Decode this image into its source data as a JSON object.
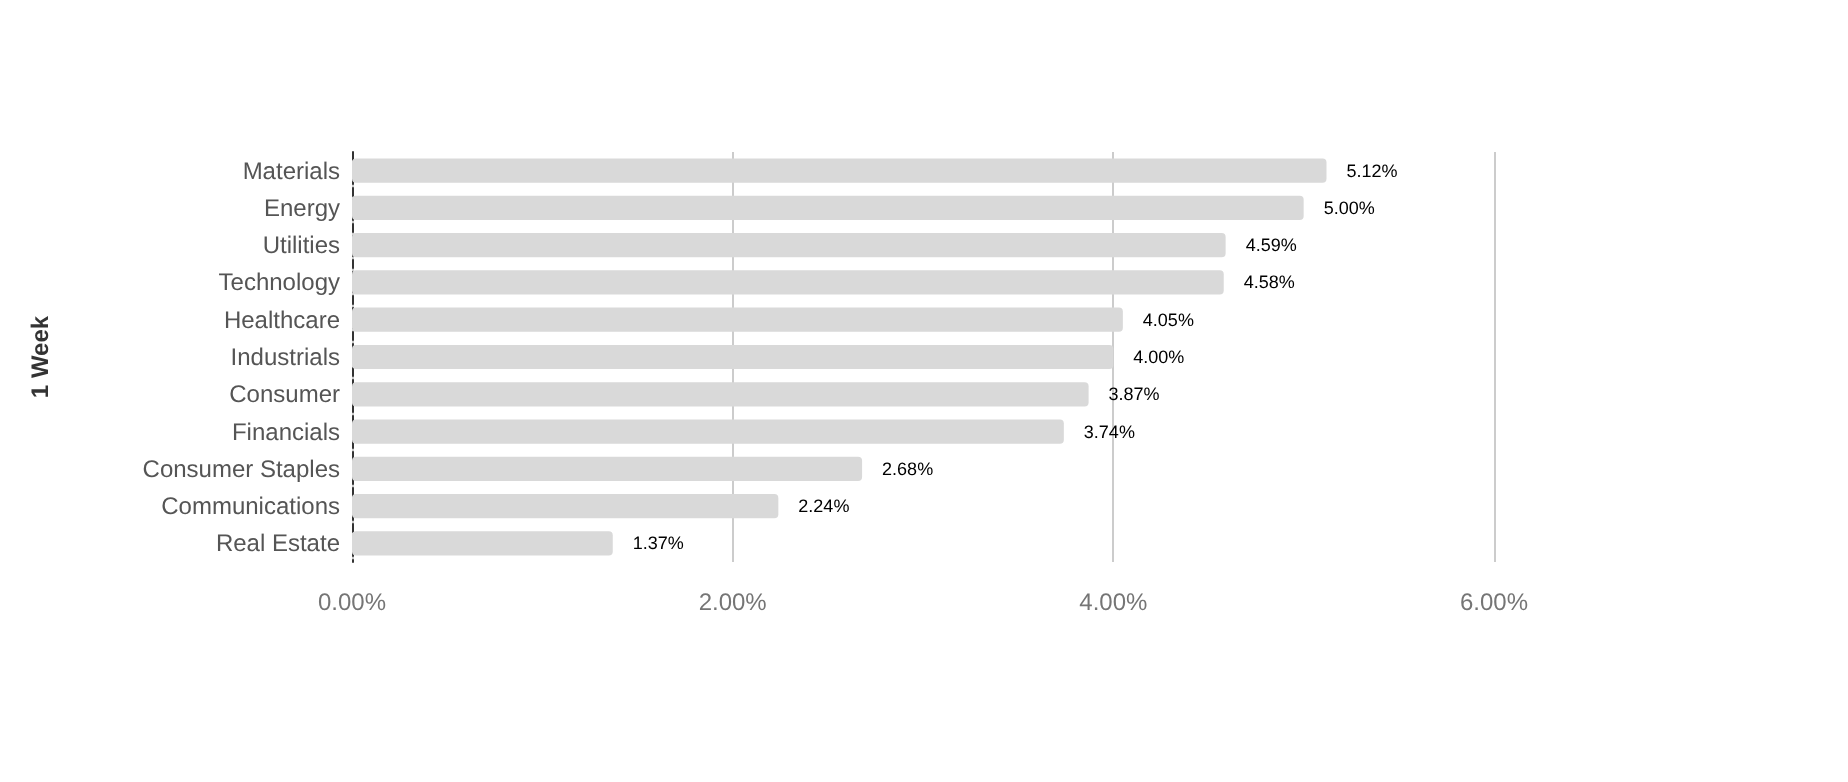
{
  "chart_data": {
    "type": "bar",
    "orientation": "horizontal",
    "ylabel": "1 Week",
    "categories": [
      "Materials",
      "Energy",
      "Utilities",
      "Technology",
      "Healthcare",
      "Industrials",
      "Consumer",
      "Financials",
      "Consumer Staples",
      "Communications",
      "Real Estate"
    ],
    "values": [
      5.12,
      5.0,
      4.59,
      4.58,
      4.05,
      4.0,
      3.87,
      3.74,
      2.68,
      2.24,
      1.37
    ],
    "value_labels": [
      "5.12%",
      "5.00%",
      "4.59%",
      "4.58%",
      "4.05%",
      "4.00%",
      "3.87%",
      "3.74%",
      "2.68%",
      "2.24%",
      "1.37%"
    ],
    "color": "#d9d9d9",
    "xlim": [
      0,
      6
    ],
    "xticks": [
      {
        "value": 0,
        "label": "0.00%"
      },
      {
        "value": 2,
        "label": "2.00%"
      },
      {
        "value": 4,
        "label": "4.00%"
      },
      {
        "value": 6,
        "label": "6.00%"
      }
    ],
    "grid": "x"
  }
}
